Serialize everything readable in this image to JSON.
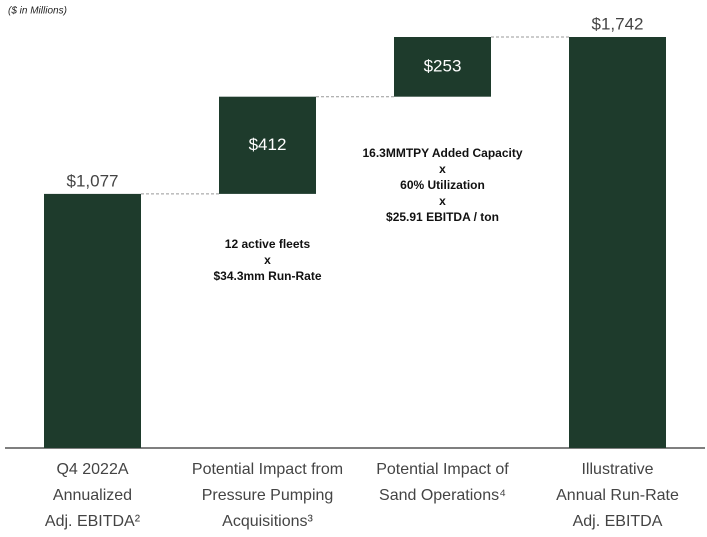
{
  "chart_data": {
    "type": "waterfall",
    "subtitle": "($ in Millions)",
    "categories": [
      "Q4 2022A\nAnnualized\nAdj. EBITDA²",
      "Potential Impact from\nPressure Pumping\nAcquisitions³",
      "Potential Impact of\nSand Operations⁴",
      "Illustrative\nAnnual Run-Rate\nAdj. EBITDA"
    ],
    "values": [
      1077,
      412,
      253,
      1742
    ],
    "value_labels": [
      "$1,077",
      "$412",
      "$253",
      "$1,742"
    ],
    "color": "#1e3b2c",
    "annotations": [
      [
        "12 active fleets",
        "x",
        "$34.3mm Run-Rate"
      ],
      [
        "16.3MMTPY Added Capacity",
        "x",
        "60% Utilization",
        "x",
        "$25.91 EBITDA / ton"
      ]
    ]
  }
}
